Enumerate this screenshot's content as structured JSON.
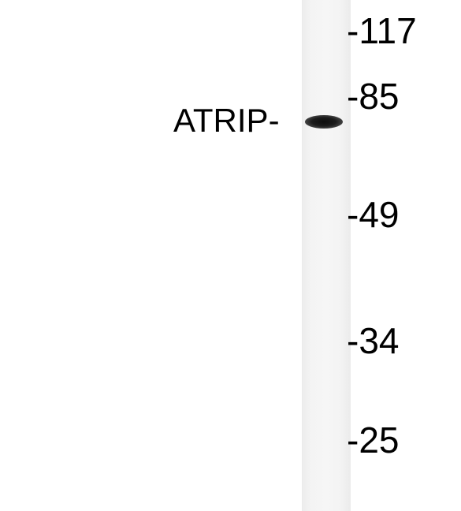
{
  "blot": {
    "protein_label": "ATRIP-",
    "markers": [
      "-117",
      "-85",
      "-49",
      "-34",
      "-25"
    ]
  }
}
